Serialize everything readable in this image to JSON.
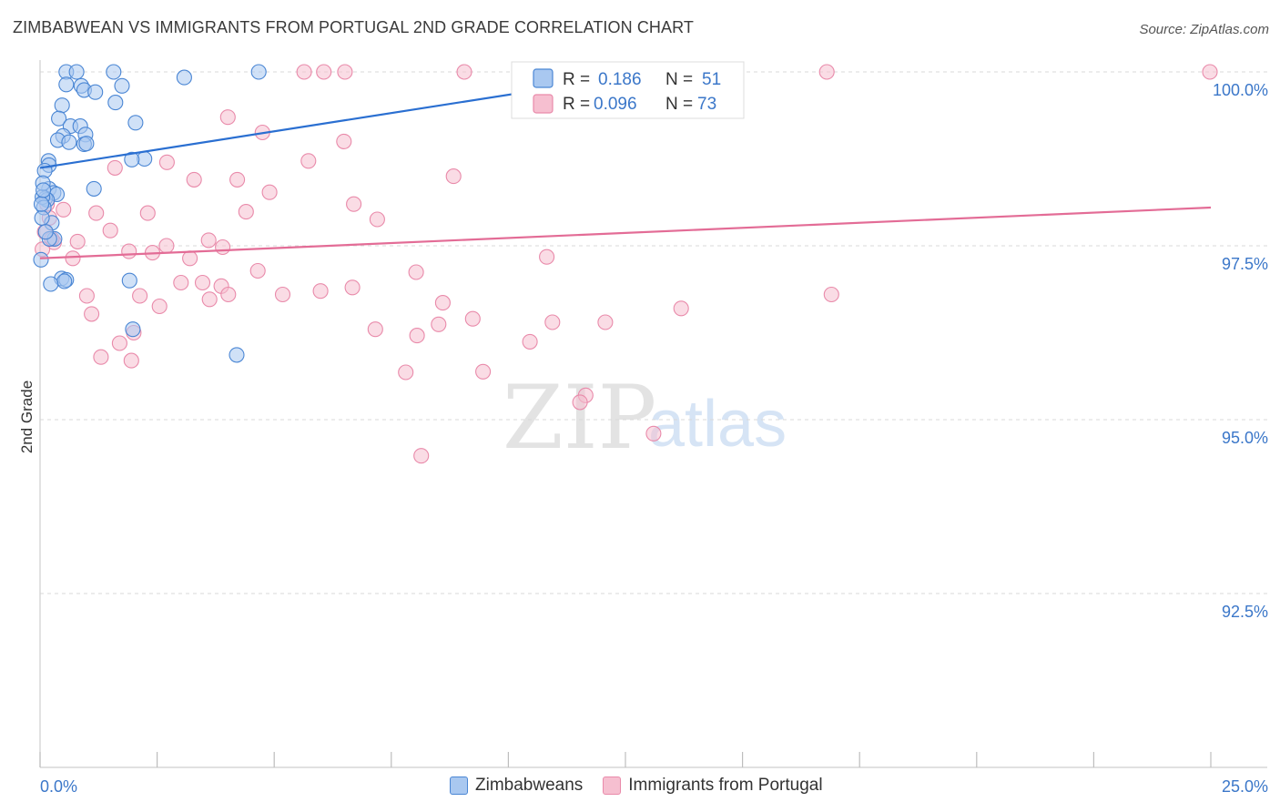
{
  "title": "ZIMBABWEAN VS IMMIGRANTS FROM PORTUGAL 2ND GRADE CORRELATION CHART",
  "source": "Source: ZipAtlas.com",
  "watermark": {
    "zip": "ZIP",
    "atlas": "atlas"
  },
  "colors": {
    "blue_fill": "#a9c8f0",
    "blue_stroke": "#4a86d4",
    "blue_line": "#2a6fd1",
    "pink_fill": "#f6bfd0",
    "pink_stroke": "#e98aaa",
    "pink_line": "#e36c96",
    "axis_text": "#3b77c9",
    "grid": "#d9d9d9"
  },
  "legend": {
    "series": [
      {
        "r_label": "R =",
        "r_value": "0.186",
        "n_label": "N =",
        "n_value": "51"
      },
      {
        "r_label": "R =",
        "r_value": "0.096",
        "n_label": "N =",
        "n_value": "73"
      }
    ]
  },
  "bottom_legend": [
    "Zimbabweans",
    "Immigrants from Portugal"
  ],
  "chart_data": {
    "type": "scatter",
    "title": "ZIMBABWEAN VS IMMIGRANTS FROM PORTUGAL 2ND GRADE CORRELATION CHART",
    "xlabel": "",
    "ylabel": "2nd Grade",
    "xlim": [
      0,
      25
    ],
    "ylim": [
      90.0,
      100.25
    ],
    "x_tick_labels": [
      "0.0%",
      "25.0%"
    ],
    "y_ticks": [
      92.5,
      95.0,
      97.5,
      100.0
    ],
    "y_tick_labels": [
      "92.5%",
      "95.0%",
      "97.5%",
      "100.0%"
    ],
    "grid": true,
    "series": [
      {
        "name": "Zimbabweans",
        "trend": {
          "x": [
            0.0,
            13.6
          ],
          "y": [
            98.62,
            100.05
          ]
        },
        "points": [
          [
            0.56,
            100.0
          ],
          [
            0.78,
            100.0
          ],
          [
            1.57,
            100.0
          ],
          [
            3.08,
            99.92
          ],
          [
            4.67,
            100.0
          ],
          [
            0.56,
            99.82
          ],
          [
            0.88,
            99.8
          ],
          [
            0.94,
            99.74
          ],
          [
            1.18,
            99.71
          ],
          [
            1.75,
            99.8
          ],
          [
            1.61,
            99.56
          ],
          [
            0.47,
            99.52
          ],
          [
            0.4,
            99.33
          ],
          [
            2.04,
            99.27
          ],
          [
            0.65,
            99.22
          ],
          [
            0.86,
            99.22
          ],
          [
            0.97,
            99.1
          ],
          [
            0.49,
            99.08
          ],
          [
            0.38,
            99.02
          ],
          [
            0.62,
            98.99
          ],
          [
            0.94,
            98.96
          ],
          [
            0.99,
            98.97
          ],
          [
            2.23,
            98.75
          ],
          [
            1.96,
            98.74
          ],
          [
            0.18,
            98.72
          ],
          [
            0.19,
            98.66
          ],
          [
            0.1,
            98.58
          ],
          [
            1.15,
            98.32
          ],
          [
            0.19,
            98.32
          ],
          [
            0.29,
            98.26
          ],
          [
            0.36,
            98.24
          ],
          [
            0.11,
            98.18
          ],
          [
            0.15,
            98.16
          ],
          [
            0.25,
            97.83
          ],
          [
            0.31,
            97.6
          ],
          [
            0.2,
            97.6
          ],
          [
            0.46,
            97.03
          ],
          [
            0.56,
            97.01
          ],
          [
            0.52,
            96.99
          ],
          [
            0.23,
            96.95
          ],
          [
            1.91,
            97.0
          ],
          [
            1.98,
            96.3
          ],
          [
            4.2,
            95.93
          ],
          [
            0.02,
            97.3
          ],
          [
            0.05,
            98.2
          ],
          [
            0.08,
            98.05
          ],
          [
            0.04,
            97.9
          ],
          [
            0.06,
            98.4
          ],
          [
            0.12,
            97.7
          ],
          [
            0.03,
            98.1
          ],
          [
            0.07,
            98.3
          ]
        ]
      },
      {
        "name": "Immigrants from Portugal",
        "trend": {
          "x": [
            0.0,
            25.0
          ],
          "y": [
            97.32,
            98.05
          ]
        },
        "points": [
          [
            5.64,
            100.0
          ],
          [
            6.06,
            100.0
          ],
          [
            6.51,
            100.0
          ],
          [
            9.06,
            100.0
          ],
          [
            13.89,
            100.0
          ],
          [
            16.8,
            100.0
          ],
          [
            24.98,
            100.0
          ],
          [
            4.01,
            99.35
          ],
          [
            4.75,
            99.13
          ],
          [
            6.49,
            99.0
          ],
          [
            2.71,
            98.7
          ],
          [
            5.73,
            98.72
          ],
          [
            1.6,
            98.62
          ],
          [
            8.83,
            98.5
          ],
          [
            3.29,
            98.45
          ],
          [
            4.21,
            98.45
          ],
          [
            4.9,
            98.27
          ],
          [
            6.7,
            98.1
          ],
          [
            7.2,
            97.88
          ],
          [
            0.5,
            98.02
          ],
          [
            1.2,
            97.97
          ],
          [
            2.3,
            97.97
          ],
          [
            4.4,
            97.99
          ],
          [
            1.5,
            97.72
          ],
          [
            0.3,
            97.55
          ],
          [
            0.8,
            97.56
          ],
          [
            2.7,
            97.5
          ],
          [
            3.6,
            97.58
          ],
          [
            3.9,
            97.48
          ],
          [
            1.9,
            97.42
          ],
          [
            2.4,
            97.4
          ],
          [
            3.2,
            97.32
          ],
          [
            0.7,
            97.32
          ],
          [
            4.65,
            97.14
          ],
          [
            8.03,
            97.12
          ],
          [
            10.82,
            97.34
          ],
          [
            3.01,
            96.97
          ],
          [
            3.47,
            96.97
          ],
          [
            3.87,
            96.92
          ],
          [
            5.18,
            96.8
          ],
          [
            5.99,
            96.85
          ],
          [
            6.67,
            96.9
          ],
          [
            4.02,
            96.8
          ],
          [
            3.62,
            96.73
          ],
          [
            2.13,
            96.78
          ],
          [
            1.0,
            96.78
          ],
          [
            2.55,
            96.63
          ],
          [
            8.6,
            96.68
          ],
          [
            1.1,
            96.52
          ],
          [
            8.51,
            96.37
          ],
          [
            9.24,
            96.45
          ],
          [
            10.94,
            96.4
          ],
          [
            12.07,
            96.4
          ],
          [
            13.69,
            96.6
          ],
          [
            16.9,
            96.8
          ],
          [
            7.16,
            96.3
          ],
          [
            8.05,
            96.21
          ],
          [
            10.46,
            96.12
          ],
          [
            1.7,
            96.1
          ],
          [
            1.3,
            95.9
          ],
          [
            1.95,
            95.85
          ],
          [
            2.0,
            96.25
          ],
          [
            7.81,
            95.68
          ],
          [
            9.46,
            95.69
          ],
          [
            11.65,
            95.35
          ],
          [
            11.53,
            95.25
          ],
          [
            13.1,
            94.8
          ],
          [
            8.14,
            94.48
          ],
          [
            0.1,
            97.7
          ],
          [
            0.15,
            98.1
          ],
          [
            0.25,
            97.6
          ],
          [
            0.05,
            97.45
          ],
          [
            0.2,
            97.9
          ]
        ]
      }
    ]
  }
}
